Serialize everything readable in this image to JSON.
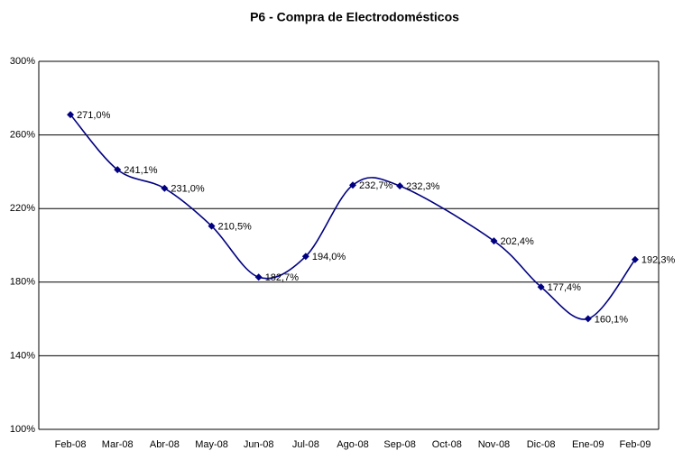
{
  "chart_data": {
    "type": "line",
    "title": "P6 - Compra de Electrodomésticos",
    "categories": [
      "Feb-08",
      "Mar-08",
      "Abr-08",
      "May-08",
      "Jun-08",
      "Jul-08",
      "Ago-08",
      "Sep-08",
      "Oct-08",
      "Nov-08",
      "Dic-08",
      "Ene-09",
      "Feb-09"
    ],
    "values": [
      271.0,
      241.1,
      231.0,
      210.5,
      182.7,
      194.0,
      232.7,
      232.3,
      null,
      202.4,
      177.4,
      160.1,
      192.3
    ],
    "value_labels": [
      "271,0%",
      "241,1%",
      "231,0%",
      "210,5%",
      "182,7%",
      "194,0%",
      "232,7%",
      "232,3%",
      null,
      "202,4%",
      "177,4%",
      "160,1%",
      "192,3%"
    ],
    "color": "#000080",
    "ylim": [
      100,
      300
    ],
    "yticks": [
      {
        "value": 100,
        "label": "100%"
      },
      {
        "value": 140,
        "label": "140%"
      },
      {
        "value": 180,
        "label": "180%"
      },
      {
        "value": 220,
        "label": "220%"
      },
      {
        "value": 260,
        "label": "260%"
      },
      {
        "value": 300,
        "label": "300%"
      }
    ],
    "grid": true
  }
}
